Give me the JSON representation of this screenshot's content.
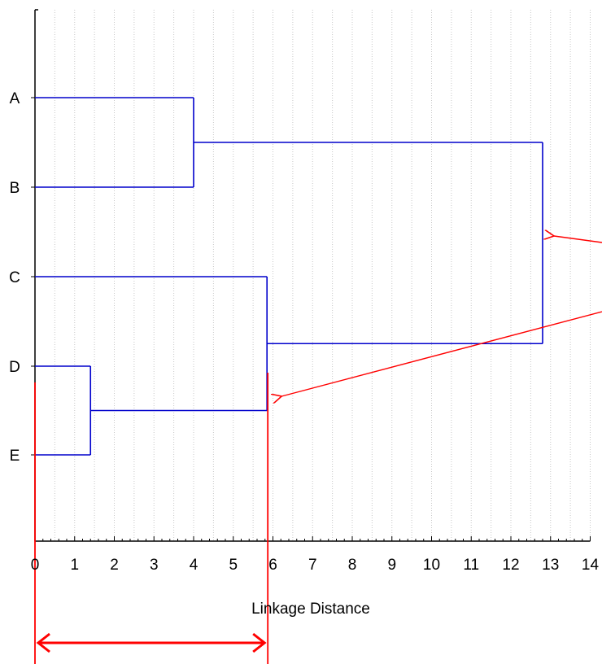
{
  "chart_data": {
    "type": "dendrogram",
    "title": "",
    "xlabel": "Linkage Distance",
    "ylabel": "",
    "xlim": [
      0,
      14
    ],
    "x_ticks": [
      "0",
      "1",
      "2",
      "3",
      "4",
      "5",
      "6",
      "7",
      "8",
      "9",
      "10",
      "11",
      "12",
      "13",
      "14"
    ],
    "leaves": [
      "A",
      "B",
      "C",
      "D",
      "E"
    ],
    "merges": [
      {
        "items": [
          "D",
          "E"
        ],
        "distance": 1.4
      },
      {
        "items": [
          "A",
          "B"
        ],
        "distance": 4.0
      },
      {
        "items": [
          "C",
          "D+E"
        ],
        "distance": 5.85
      },
      {
        "items": [
          "A+B",
          "C+D+E"
        ],
        "distance": 12.8
      }
    ],
    "grid": "vertical-dotted",
    "colors": {
      "tree": "#0000cc",
      "annotation": "#ff0000",
      "axis": "#000000",
      "grid": "#c8c8c8"
    },
    "annotations": [
      {
        "type": "arrow",
        "points_to_merge_at": 12.8
      },
      {
        "type": "arrow",
        "points_to_merge_at": 5.85
      },
      {
        "type": "double-arrow",
        "from": 0,
        "to": 5.85
      }
    ]
  }
}
